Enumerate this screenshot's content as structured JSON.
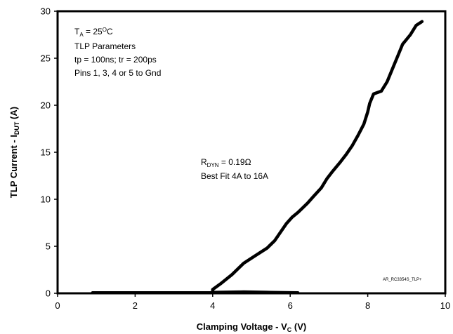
{
  "chart_data": {
    "type": "line",
    "xlabel": {
      "main": "Clamping Voltage - V",
      "sub": "C",
      "suffix": " (V)"
    },
    "ylabel": {
      "main": "TLP Current - I",
      "sub": "DUT",
      "suffix": " (A)"
    },
    "xlim": [
      0,
      10
    ],
    "ylim": [
      0,
      30
    ],
    "x_ticks": [
      "0",
      "2",
      "4",
      "6",
      "8",
      "10"
    ],
    "y_ticks": [
      "0",
      "5",
      "10",
      "15",
      "20",
      "25",
      "30"
    ],
    "grid": false,
    "series": [
      {
        "color": "#000000",
        "points": [
          [
            0.9,
            0.05
          ],
          [
            2.0,
            0.05
          ],
          [
            3.0,
            0.05
          ],
          [
            3.95,
            0.05
          ],
          [
            4.8,
            0.15
          ],
          [
            5.5,
            0.1
          ],
          [
            6.2,
            0.05
          ],
          [
            5.5,
            0.1
          ],
          [
            4.8,
            0.15
          ],
          [
            4.0,
            0.1
          ],
          [
            4.0,
            0.4
          ],
          [
            4.2,
            1.0
          ],
          [
            4.5,
            2.0
          ],
          [
            4.8,
            3.2
          ],
          [
            5.1,
            4.0
          ],
          [
            5.4,
            4.8
          ],
          [
            5.6,
            5.6
          ],
          [
            5.75,
            6.5
          ],
          [
            5.9,
            7.4
          ],
          [
            6.05,
            8.1
          ],
          [
            6.2,
            8.6
          ],
          [
            6.3,
            9.0
          ],
          [
            6.45,
            9.6
          ],
          [
            6.6,
            10.3
          ],
          [
            6.8,
            11.2
          ],
          [
            6.95,
            12.2
          ],
          [
            7.1,
            13.0
          ],
          [
            7.3,
            14.0
          ],
          [
            7.45,
            14.8
          ],
          [
            7.6,
            15.7
          ],
          [
            7.75,
            16.8
          ],
          [
            7.9,
            18.0
          ],
          [
            8.0,
            19.3
          ],
          [
            8.05,
            20.2
          ],
          [
            8.15,
            21.2
          ],
          [
            8.35,
            21.5
          ],
          [
            8.5,
            22.5
          ],
          [
            8.65,
            24.0
          ],
          [
            8.8,
            25.5
          ],
          [
            8.9,
            26.5
          ],
          [
            9.1,
            27.5
          ],
          [
            9.25,
            28.5
          ],
          [
            9.4,
            28.9
          ]
        ]
      }
    ],
    "annotations": [
      {
        "lines": [
          {
            "main": "T",
            "sub": "A",
            "mid": " = 25",
            "sup": "O",
            "suffix": "C"
          },
          {
            "main": "TLP Parameters"
          },
          {
            "main": "tp = 100ns; tr = 200ps"
          },
          {
            "main": "Pins 1, 3, 4 or 5 to Gnd"
          }
        ]
      },
      {
        "lines": [
          {
            "main": "R",
            "sub": "DYN",
            "suffix": " = 0.19Ω"
          },
          {
            "main": "Best Fit 4A to 16A"
          }
        ]
      }
    ],
    "watermark": "AR_RC3354S_TLP+"
  }
}
